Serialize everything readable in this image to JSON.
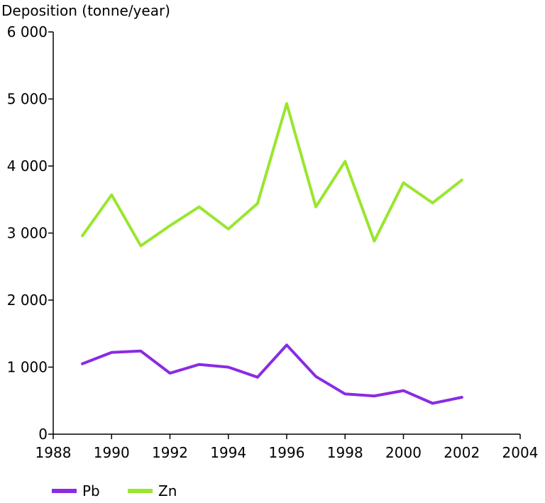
{
  "chart_data": {
    "type": "line",
    "ylabel": "Deposition (tonne/year)",
    "xlabel": "",
    "xlim": [
      1988,
      2004
    ],
    "ylim": [
      0,
      6000
    ],
    "x_ticks": [
      1988,
      1990,
      1992,
      1994,
      1996,
      1998,
      2000,
      2002,
      2004
    ],
    "y_ticks": [
      0,
      1000,
      2000,
      3000,
      4000,
      5000,
      6000
    ],
    "x_tick_labels": [
      "1988",
      "1990",
      "1992",
      "1994",
      "1996",
      "1998",
      "2000",
      "2002",
      "2004"
    ],
    "y_tick_labels": [
      "0",
      "1 000",
      "2 000",
      "3 000",
      "4 000",
      "5 000",
      "6 000"
    ],
    "grid": false,
    "legend_position": "bottom-left",
    "x": [
      1989,
      1990,
      1991,
      1992,
      1993,
      1994,
      1995,
      1996,
      1997,
      1998,
      1999,
      2000,
      2001,
      2002
    ],
    "series": [
      {
        "name": "Pb",
        "color": "#8a2be2",
        "values": [
          1050,
          1220,
          1240,
          910,
          1040,
          1000,
          850,
          1330,
          860,
          600,
          570,
          650,
          460,
          550
        ]
      },
      {
        "name": "Zn",
        "color": "#99e62e",
        "values": [
          2960,
          3570,
          2810,
          3110,
          3390,
          3060,
          3440,
          4930,
          3390,
          4070,
          2880,
          3750,
          3450,
          3790
        ]
      }
    ]
  }
}
